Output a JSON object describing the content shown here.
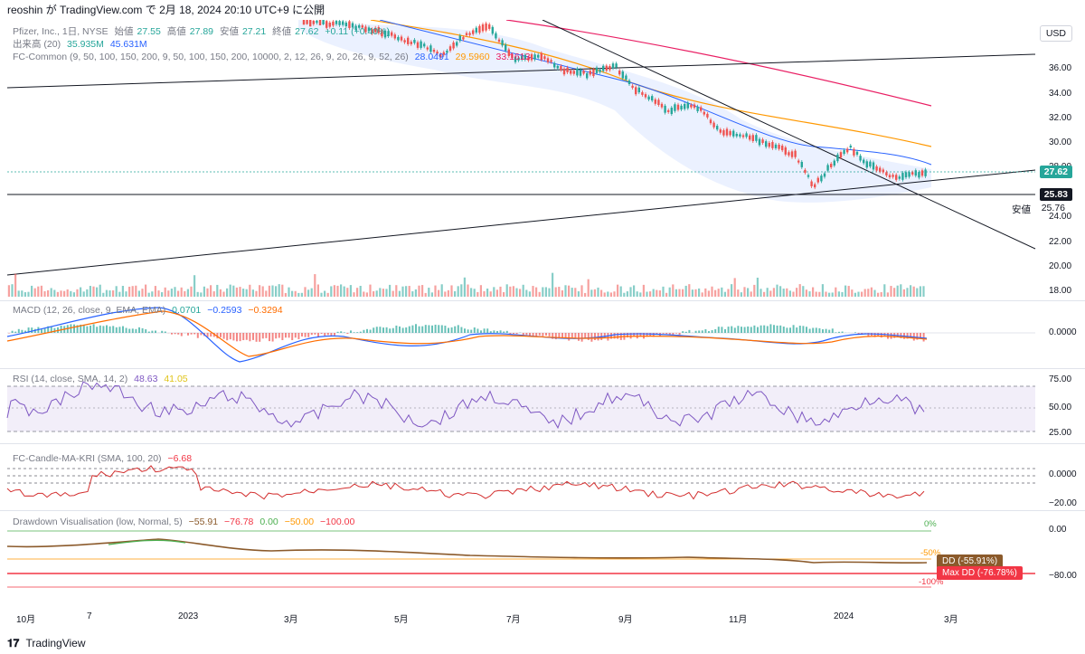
{
  "topbar": {
    "text": "reoshin が TradingView.com で 2月 18, 2024 20:10 UTC+9 に公開"
  },
  "legend": {
    "title": "Pfizer, Inc., 1日, NYSE",
    "open_label": "始値",
    "open": "27.55",
    "high_label": "高値",
    "high": "27.89",
    "low_label": "安値",
    "low": "27.21",
    "close_label": "終値",
    "close": "27.62",
    "change": "+0.11 (+0.40%)",
    "volume_label": "出来高 (20)",
    "volume1": "35.935M",
    "volume2": "45.631M",
    "fc_common": "FC-Common (9, 50, 100, 150, 200, 9, 50, 100, 150, 200, 10000, 2, 12, 26, 9, 20, 26, 9, 52, 26)",
    "fc_v1": "28.0491",
    "fc_v2": "29.5960",
    "fc_v3": "33.1613"
  },
  "price_axis": {
    "currency": "USD",
    "ticks": [
      "36.00",
      "34.00",
      "32.00",
      "30.00",
      "28.00",
      "26.00",
      "24.00",
      "22.00",
      "20.00",
      "18.00"
    ],
    "last_price": "27.62",
    "low_level": "25.83",
    "low_marker_label": "安値",
    "low_marker_value": "25.76"
  },
  "macd": {
    "label": "MACD (12, 26, close, 9, EMA, EMA)",
    "v1": "0.0701",
    "v2": "−0.2593",
    "v3": "−0.3294",
    "tick": "0.0000"
  },
  "rsi": {
    "label": "RSI (14, close, SMA, 14, 2)",
    "v1": "48.63",
    "v2": "41.05",
    "ticks": [
      "75.00",
      "50.00",
      "25.00"
    ]
  },
  "fc_candle": {
    "label": "FC-Candle-MA-KRI (SMA, 100, 20)",
    "v1": "−6.68",
    "ticks": [
      "0.0000",
      "−20.00"
    ]
  },
  "drawdown": {
    "label": "Drawdown Visualisation (low, Normal, 5)",
    "v1": "−55.91",
    "v2": "−76.78",
    "v3": "0.00",
    "v4": "−50.00",
    "v5": "−100.00",
    "ticks": [
      "0.00",
      "−80.00"
    ],
    "pct0": "0%",
    "pct50": "-50%",
    "pct100": "-100%",
    "dd_tag": "DD (-55.91%)",
    "maxdd_tag": "Max DD (-76.78%)"
  },
  "time_axis": [
    "10月",
    "7",
    "2023",
    "3月",
    "5月",
    "7月",
    "9月",
    "11月",
    "2024",
    "3月"
  ],
  "footer": {
    "brand": "TradingView"
  },
  "colors": {
    "up": "#26a69a",
    "down": "#ef5350",
    "ma50": "#2962ff",
    "ma100": "#ff9800",
    "ma200": "#e91e63",
    "rsi": "#7e57c2",
    "dd_brown": "#8b5a2b",
    "maxdd_red": "#f23645"
  }
}
